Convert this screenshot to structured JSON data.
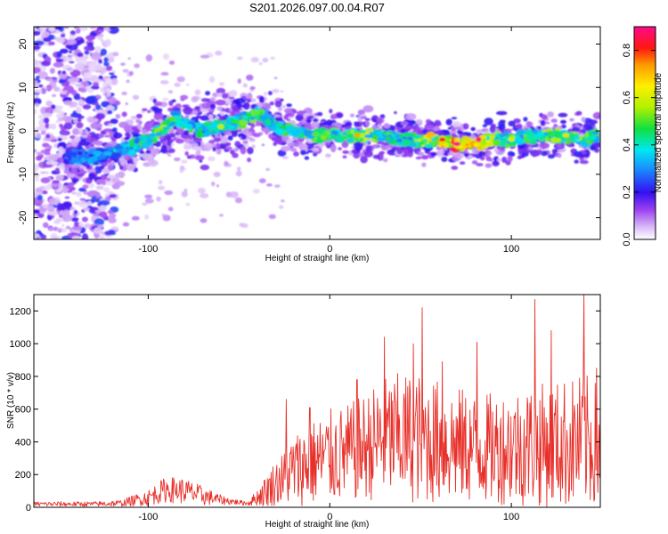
{
  "figure": {
    "title": "S201.2026.097.00.04.R07"
  },
  "chart_data": [
    {
      "type": "heatmap",
      "xlabel": "Height of straight line (km)",
      "ylabel": "Frequency (Hz)",
      "xlim": [
        -163,
        149
      ],
      "ylim": [
        -25,
        24
      ],
      "xticks": [
        -100,
        0,
        100
      ],
      "yticks": [
        -20,
        -10,
        0,
        10,
        20
      ],
      "colorbar": {
        "label": "Normalized spectral amplitude",
        "range": [
          0,
          0.9
        ],
        "ticks": [
          0.0,
          0.2,
          0.4,
          0.6,
          0.8
        ],
        "colormap": "rainbow (white-violet-blue-cyan-green-yellow-orange-red-magenta)"
      },
      "ridge": {
        "x": [
          -145,
          -130,
          -120,
          -110,
          -100,
          -90,
          -85,
          -80,
          -70,
          -60,
          -50,
          -40,
          -35,
          -30,
          -20,
          -10,
          0,
          10,
          20,
          30,
          40,
          50,
          60,
          70,
          80,
          90,
          100,
          110,
          120,
          130,
          140,
          148
        ],
        "y": [
          -6,
          -6,
          -5,
          -4,
          -2,
          1,
          3,
          2,
          0,
          1,
          2,
          4,
          3,
          1,
          0,
          -1,
          -1,
          -1,
          -1,
          -1,
          -2,
          -2,
          -2,
          -3,
          -3,
          -2,
          -2,
          -1,
          -1,
          -1,
          -2,
          -1
        ],
        "amplitude": [
          0.35,
          0.35,
          0.4,
          0.45,
          0.5,
          0.55,
          0.5,
          0.5,
          0.45,
          0.5,
          0.5,
          0.55,
          0.45,
          0.45,
          0.5,
          0.55,
          0.5,
          0.55,
          0.6,
          0.5,
          0.45,
          0.6,
          0.75,
          0.85,
          0.75,
          0.6,
          0.55,
          0.5,
          0.55,
          0.6,
          0.55,
          0.5
        ]
      }
    },
    {
      "type": "line",
      "xlabel": "Height of straight line (km)",
      "ylabel": "SNR (10 * v/v)",
      "xlim": [
        -163,
        149
      ],
      "ylim": [
        0,
        1300
      ],
      "xticks": [
        -100,
        0,
        100
      ],
      "yticks": [
        0,
        200,
        400,
        600,
        800,
        1000,
        1200
      ],
      "color": "#e8302a",
      "envelope": {
        "x": [
          -163,
          -130,
          -115,
          -100,
          -90,
          -80,
          -70,
          -60,
          -50,
          -45,
          -40,
          -35,
          -30,
          -25,
          -20,
          -10,
          0,
          10,
          20,
          30,
          40,
          50,
          60,
          70,
          80,
          90,
          100,
          110,
          120,
          130,
          140,
          149
        ],
        "mean": [
          20,
          20,
          25,
          60,
          110,
          100,
          70,
          45,
          30,
          25,
          60,
          100,
          150,
          180,
          230,
          270,
          310,
          330,
          370,
          420,
          430,
          420,
          400,
          380,
          360,
          360,
          370,
          380,
          380,
          390,
          400,
          380
        ],
        "spread": [
          15,
          15,
          20,
          50,
          80,
          80,
          60,
          30,
          15,
          15,
          50,
          100,
          140,
          170,
          220,
          260,
          290,
          300,
          330,
          380,
          400,
          400,
          380,
          360,
          340,
          340,
          360,
          380,
          380,
          400,
          420,
          380
        ]
      },
      "peaks": [
        {
          "x": -24,
          "y": 660
        },
        {
          "x": -11,
          "y": 610
        },
        {
          "x": 15,
          "y": 780
        },
        {
          "x": 30,
          "y": 1040
        },
        {
          "x": 46,
          "y": 1000
        },
        {
          "x": 51,
          "y": 1220
        },
        {
          "x": 62,
          "y": 890
        },
        {
          "x": 81,
          "y": 1010
        },
        {
          "x": 113,
          "y": 1270
        },
        {
          "x": 122,
          "y": 1080
        },
        {
          "x": 140,
          "y": 1310
        },
        {
          "x": 147,
          "y": 850
        }
      ]
    }
  ]
}
